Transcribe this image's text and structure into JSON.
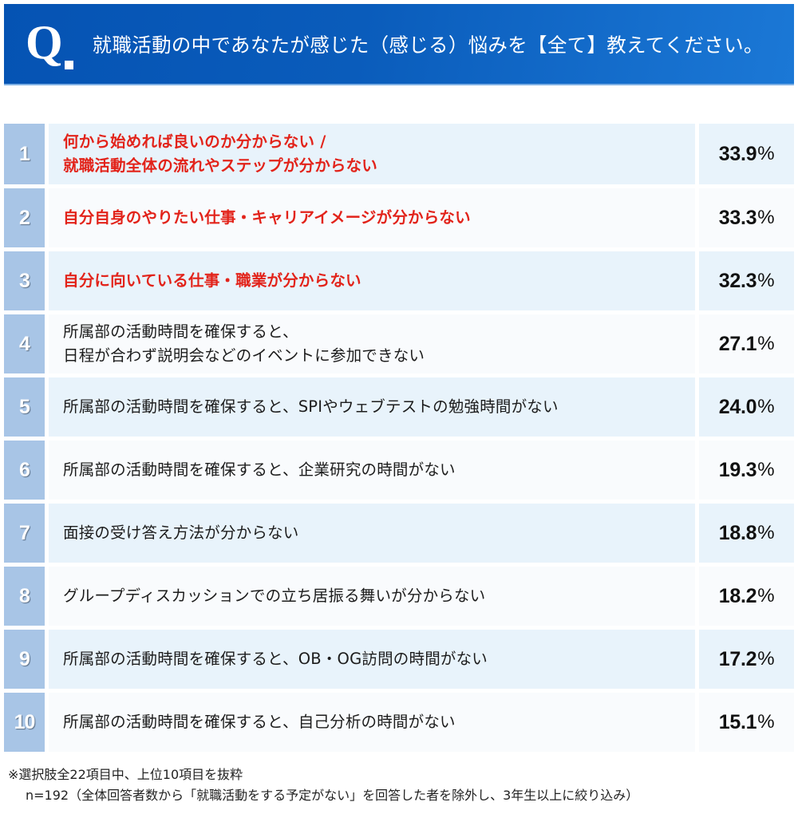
{
  "header": {
    "q_mark": "Q",
    "question": "就職活動の中であなたが感じた（感じる）悩みを【全て】教えてください。"
  },
  "rows": [
    {
      "rank": "1",
      "lines": [
        "何から始めれば良いのか分からない /",
        "就職活動全体の流れやステップが分からない"
      ],
      "value": "33.9",
      "unit": "%",
      "highlight": true
    },
    {
      "rank": "2",
      "lines": [
        "自分自身のやりたい仕事・キャリアイメージが分からない"
      ],
      "value": "33.3",
      "unit": "%",
      "highlight": true
    },
    {
      "rank": "3",
      "lines": [
        "自分に向いている仕事・職業が分からない"
      ],
      "value": "32.3",
      "unit": "%",
      "highlight": true
    },
    {
      "rank": "4",
      "lines": [
        "所属部の活動時間を確保すると、",
        "日程が合わず説明会などのイベントに参加できない"
      ],
      "value": "27.1",
      "unit": "%",
      "highlight": false
    },
    {
      "rank": "5",
      "lines": [
        "所属部の活動時間を確保すると、SPIやウェブテストの勉強時間がない"
      ],
      "value": "24.0",
      "unit": "%",
      "highlight": false
    },
    {
      "rank": "6",
      "lines": [
        "所属部の活動時間を確保すると、企業研究の時間がない"
      ],
      "value": "19.3",
      "unit": "%",
      "highlight": false
    },
    {
      "rank": "7",
      "lines": [
        "面接の受け答え方法が分からない"
      ],
      "value": "18.8",
      "unit": "%",
      "highlight": false
    },
    {
      "rank": "8",
      "lines": [
        "グループディスカッションでの立ち居振る舞いが分からない"
      ],
      "value": "18.2",
      "unit": "%",
      "highlight": false
    },
    {
      "rank": "9",
      "lines": [
        "所属部の活動時間を確保すると、OB・OG訪問の時間がない"
      ],
      "value": "17.2",
      "unit": "%",
      "highlight": false
    },
    {
      "rank": "10",
      "lines": [
        "所属部の活動時間を確保すると、自己分析の時間がない"
      ],
      "value": "15.1",
      "unit": "%",
      "highlight": false
    }
  ],
  "footnote": {
    "line1": "※選択肢全22項目中、上位10項目を抜粋",
    "line2": "n=192（全体回答者数から「就職活動をする予定がない」を回答した者を除外し、3年生以上に絞り込み）"
  },
  "colors": {
    "header_bg_start": "#0553b3",
    "header_bg_end": "#1b78d6",
    "rank_bg": "#a8c5e6",
    "row_odd_bg": "#e8f3fb",
    "row_even_bg": "#f9fbfd",
    "highlight_text": "#e2231a"
  },
  "chart_data": {
    "type": "table",
    "title": "就職活動の中であなたが感じた（感じる）悩みを【全て】教えてください。",
    "categories": [
      "何から始めれば良いのか分からない / 就職活動全体の流れやステップが分からない",
      "自分自身のやりたい仕事・キャリアイメージが分からない",
      "自分に向いている仕事・職業が分からない",
      "所属部の活動時間を確保すると、日程が合わず説明会などのイベントに参加できない",
      "所属部の活動時間を確保すると、SPIやウェブテストの勉強時間がない",
      "所属部の活動時間を確保すると、企業研究の時間がない",
      "面接の受け答え方法が分からない",
      "グループディスカッションでの立ち居振る舞いが分からない",
      "所属部の活動時間を確保すると、OB・OG訪問の時間がない",
      "所属部の活動時間を確保すると、自己分析の時間がない"
    ],
    "values": [
      33.9,
      33.3,
      32.3,
      27.1,
      24.0,
      19.3,
      18.8,
      18.2,
      17.2,
      15.1
    ],
    "unit": "%",
    "ranks": [
      1,
      2,
      3,
      4,
      5,
      6,
      7,
      8,
      9,
      10
    ],
    "highlighted_ranks": [
      1,
      2,
      3
    ],
    "notes": [
      "※選択肢全22項目中、上位10項目を抜粋",
      "n=192（全体回答者数から「就職活動をする予定がない」を回答した者を除外し、3年生以上に絞り込み）"
    ],
    "xlabel": "",
    "ylabel": ""
  }
}
